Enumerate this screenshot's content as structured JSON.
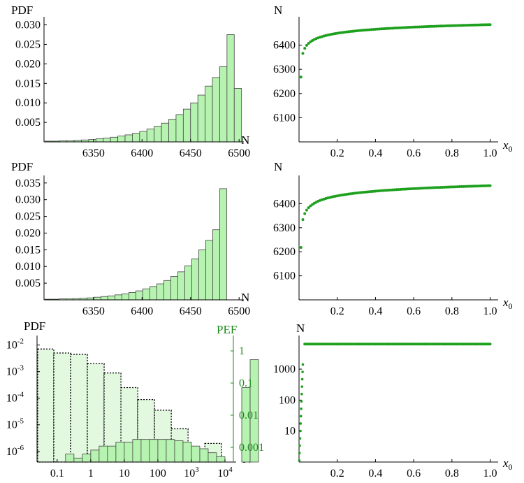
{
  "colors": {
    "bar_fill": "#b6f2b0",
    "bar_stroke": "#444444",
    "bar_fill_light": "#e2f8df",
    "dot": "#1ea01e",
    "green_axis": "#1a8a1a"
  },
  "chart_data": [
    {
      "id": "hist1",
      "type": "bar",
      "ylabel": "PDF",
      "xlabel": "N",
      "xlim": [
        6299,
        6502
      ],
      "ylim": [
        0,
        0.031
      ],
      "xticks": [
        6350,
        6400,
        6450,
        6500
      ],
      "yticks": [
        0.005,
        0.01,
        0.015,
        0.02,
        0.025,
        0.03
      ],
      "ytick_labels": [
        "0.005",
        "0.010",
        "0.015",
        "0.020",
        "0.025",
        "0.030"
      ],
      "bin_start": 6300,
      "bin_width": 7.5,
      "values": [
        0.0002,
        0.0002,
        0.0003,
        0.0003,
        0.0004,
        0.0005,
        0.0006,
        0.0008,
        0.001,
        0.0012,
        0.0015,
        0.0018,
        0.0022,
        0.0027,
        0.0033,
        0.004,
        0.0048,
        0.0058,
        0.007,
        0.0084,
        0.01,
        0.012,
        0.0143,
        0.0165,
        0.0193,
        0.0275,
        0.0137
      ]
    },
    {
      "id": "scatter1",
      "type": "scatter",
      "ylabel": "N",
      "xlabel": "x",
      "xlabel_sub": "0",
      "xlim": [
        0,
        1.02
      ],
      "ylim": [
        6000,
        6500
      ],
      "xticks": [
        0.2,
        0.4,
        0.6,
        0.8,
        1.0
      ],
      "xtick_labels": [
        "0.2",
        "0.4",
        "0.6",
        "0.8",
        "1.0"
      ],
      "yticks": [
        6100,
        6200,
        6300,
        6400
      ],
      "curve": {
        "N_at_1": 6485,
        "N_at_0": 6268,
        "x0": 0.01,
        "x1": 1.0,
        "npoints": 100
      }
    },
    {
      "id": "hist2",
      "type": "bar",
      "ylabel": "PDF",
      "xlabel": "N",
      "xlim": [
        6299,
        6502
      ],
      "ylim": [
        0,
        0.036
      ],
      "xticks": [
        6350,
        6400,
        6450,
        6500
      ],
      "yticks": [
        0.005,
        0.01,
        0.015,
        0.02,
        0.025,
        0.03,
        0.035
      ],
      "ytick_labels": [
        "0.005",
        "0.010",
        "0.015",
        "0.020",
        "0.025",
        "0.030",
        "0.035"
      ],
      "bin_start": 6300,
      "bin_width": 7.2,
      "values": [
        0.0002,
        0.0002,
        0.0003,
        0.0003,
        0.0004,
        0.0005,
        0.0006,
        0.0008,
        0.001,
        0.0012,
        0.0015,
        0.0018,
        0.0022,
        0.0027,
        0.0033,
        0.004,
        0.0048,
        0.0058,
        0.007,
        0.0084,
        0.0102,
        0.0123,
        0.015,
        0.0178,
        0.021,
        0.0333
      ]
    },
    {
      "id": "scatter2",
      "type": "scatter",
      "ylabel": "N",
      "xlabel": "x",
      "xlabel_sub": "0",
      "xlim": [
        0,
        1.02
      ],
      "ylim": [
        6000,
        6500
      ],
      "xticks": [
        0.2,
        0.4,
        0.6,
        0.8,
        1.0
      ],
      "xtick_labels": [
        "0.2",
        "0.4",
        "0.6",
        "0.8",
        "1.0"
      ],
      "yticks": [
        6100,
        6200,
        6300,
        6400
      ],
      "curve": {
        "N_at_1": 6475,
        "N_at_0": 6218,
        "x0": 0.01,
        "x1": 1.0,
        "npoints": 100
      }
    },
    {
      "id": "hist3",
      "type": "bar",
      "ylabel": "PDF",
      "ylabel_right": "PEF",
      "xlabel": "N",
      "xscale": "log",
      "yscale": "log",
      "xlim_log": [
        -1.6,
        4.25
      ],
      "ylim_log": [
        -6.4,
        -1.8
      ],
      "xticks_log": [
        -1,
        0,
        1,
        2,
        3,
        4
      ],
      "xtick_labels": [
        "0.1",
        "1",
        "10",
        "100",
        "10",
        "10"
      ],
      "xtick_sups": [
        "",
        "",
        "",
        "",
        "3",
        "4"
      ],
      "yticks_log": [
        -2,
        -3,
        -4,
        -5,
        -6
      ],
      "ytick_sups": [
        "-2",
        "-3",
        "-4",
        "-5",
        "-6"
      ],
      "ytick_base": "10",
      "right_ticks": [
        1,
        0.1,
        0.01,
        0.001
      ],
      "right_tick_labels": [
        "1",
        "0.1",
        "0.01",
        "0.001"
      ],
      "pdf_bins_log10_edges": [
        -1.58,
        -1.1,
        -0.6,
        -0.1,
        0.4,
        0.9,
        1.4,
        1.9,
        2.4,
        2.9,
        3.4,
        3.9
      ],
      "pdf_log10_values": [
        -2.15,
        -2.3,
        -2.35,
        -2.7,
        -3.05,
        -3.6,
        -4.05,
        -4.45,
        -5.15,
        -6.05,
        -5.7
      ],
      "pef_bin_width_log": 0.25,
      "pef_start_log": -1.0,
      "pef_log10_values": [
        -6.5,
        -6.1,
        -6.25,
        -6.1,
        -5.95,
        -5.8,
        -5.8,
        -5.65,
        -5.65,
        -5.55,
        -5.55,
        -5.55,
        -5.55,
        -5.55,
        -5.6,
        -5.65,
        -5.8,
        -5.9,
        -6.05,
        -6.2,
        -6.5,
        -6.5,
        -3.6,
        -2.55
      ]
    },
    {
      "id": "scatter3",
      "type": "scatter",
      "ylabel": "N",
      "xlabel": "x",
      "xlabel_sub": "0",
      "yscale": "log",
      "xlim": [
        0,
        1.02
      ],
      "ylim_log": [
        0,
        3.95
      ],
      "xticks": [
        0.2,
        0.4,
        0.6,
        0.8,
        1.0
      ],
      "xtick_labels": [
        "0.2",
        "0.4",
        "0.6",
        "0.8",
        "1.0"
      ],
      "yticks": [
        10,
        100,
        1000
      ],
      "ytick_labels": [
        "10",
        "100",
        "1000"
      ],
      "curve": {
        "plateau": 6450,
        "rise_end_x": 0.02,
        "first_plateau_x": 0.03,
        "npoints": 100
      }
    }
  ]
}
